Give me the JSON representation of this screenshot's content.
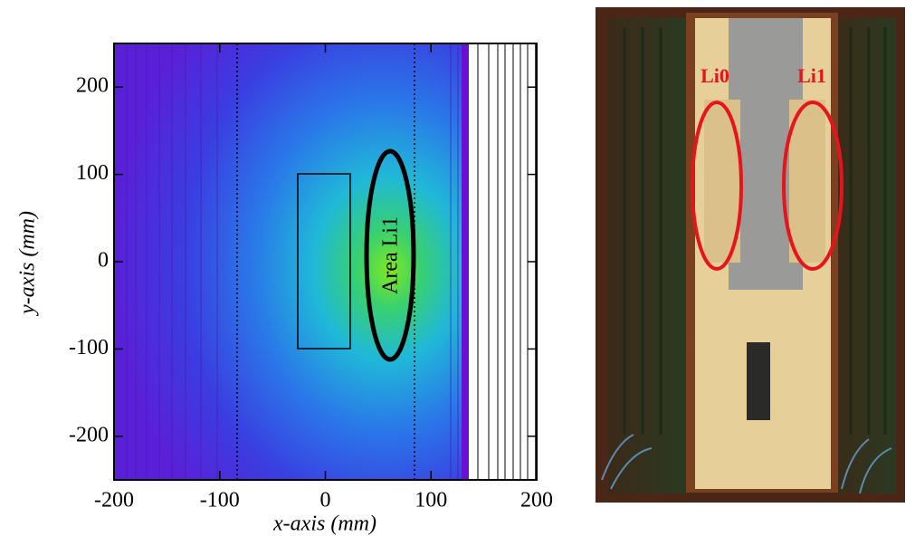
{
  "chart_data": {
    "type": "heatmap",
    "xlabel": "x-axis (mm)",
    "ylabel": "y-axis (mm)",
    "xlim": [
      -200,
      200
    ],
    "ylim": [
      -250,
      250
    ],
    "xticks": [
      -200,
      -100,
      0,
      100,
      200
    ],
    "yticks": [
      -200,
      -100,
      0,
      100,
      200
    ],
    "annotation": "Area Li1"
  },
  "photo": {
    "labels": [
      "Li0",
      "Li1"
    ]
  }
}
